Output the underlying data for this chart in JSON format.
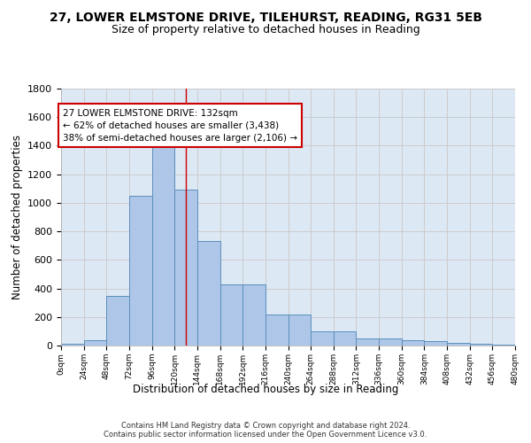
{
  "title1": "27, LOWER ELMSTONE DRIVE, TILEHURST, READING, RG31 5EB",
  "title2": "Size of property relative to detached houses in Reading",
  "xlabel": "Distribution of detached houses by size in Reading",
  "ylabel": "Number of detached properties",
  "bar_values": [
    10,
    35,
    350,
    1050,
    1450,
    1090,
    730,
    430,
    430,
    215,
    215,
    100,
    100,
    50,
    50,
    40,
    30,
    20,
    15,
    5
  ],
  "bin_edges": [
    0,
    24,
    48,
    72,
    96,
    120,
    144,
    168,
    192,
    216,
    240,
    264,
    288,
    312,
    336,
    360,
    384,
    408,
    432,
    456,
    480
  ],
  "bar_color": "#aec6e8",
  "bar_edge_color": "#5a8fbb",
  "property_size": 132,
  "vline_color": "#cc0000",
  "annotation_text": "27 LOWER ELMSTONE DRIVE: 132sqm\n← 62% of detached houses are smaller (3,438)\n38% of semi-detached houses are larger (2,106) →",
  "annotation_box_color": "#cc0000",
  "ylim": [
    0,
    1800
  ],
  "yticks": [
    0,
    200,
    400,
    600,
    800,
    1000,
    1200,
    1400,
    1600,
    1800
  ],
  "grid_color": "#cccccc",
  "bg_color": "#dde8f5",
  "footer_text": "Contains HM Land Registry data © Crown copyright and database right 2024.\nContains public sector information licensed under the Open Government Licence v3.0.",
  "title1_fontsize": 10,
  "title2_fontsize": 9,
  "xlabel_fontsize": 8.5,
  "ylabel_fontsize": 8.5,
  "annotation_fontsize": 7.5
}
